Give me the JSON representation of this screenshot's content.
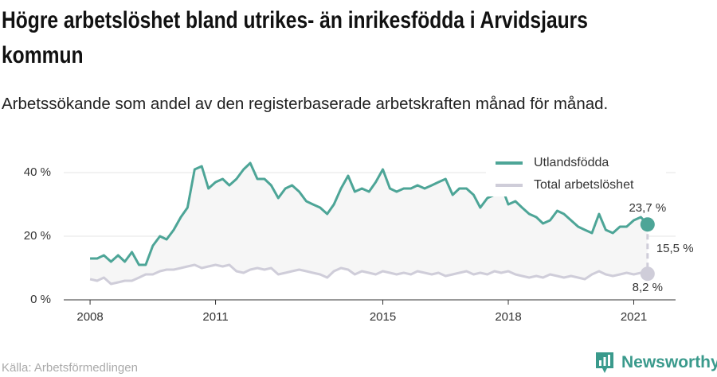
{
  "chart_data": {
    "type": "line",
    "title": "Högre arbetslöshet bland utrikes- än inrikesfödda i Arvidsjaurs kommun",
    "subtitle": "Arbetssökande som andel av den registerbaserade arbetskraften månad för månad.",
    "source": "Källa: Arbetsförmedlingen",
    "brand": "Newsworthy",
    "x": [
      2008,
      2008.17,
      2008.33,
      2008.5,
      2008.67,
      2008.83,
      2009,
      2009.17,
      2009.33,
      2009.5,
      2009.67,
      2009.83,
      2010,
      2010.17,
      2010.33,
      2010.5,
      2010.67,
      2010.83,
      2011,
      2011.17,
      2011.33,
      2011.5,
      2011.67,
      2011.83,
      2012,
      2012.17,
      2012.33,
      2012.5,
      2012.67,
      2012.83,
      2013,
      2013.17,
      2013.33,
      2013.5,
      2013.67,
      2013.83,
      2014,
      2014.17,
      2014.33,
      2014.5,
      2014.67,
      2014.83,
      2015,
      2015.17,
      2015.33,
      2015.5,
      2015.67,
      2015.83,
      2016,
      2016.17,
      2016.33,
      2016.5,
      2016.67,
      2016.83,
      2017,
      2017.17,
      2017.33,
      2017.5,
      2017.67,
      2017.83,
      2018,
      2018.17,
      2018.33,
      2018.5,
      2018.67,
      2018.83,
      2019,
      2019.17,
      2019.33,
      2019.5,
      2019.67,
      2019.83,
      2020,
      2020.17,
      2020.33,
      2020.5,
      2020.67,
      2020.83,
      2021,
      2021.17,
      2021.33
    ],
    "series": [
      {
        "name": "Utlandsfödda",
        "color": "#4da597",
        "values": [
          13,
          13,
          14,
          12,
          14,
          12,
          15,
          11,
          11,
          17,
          20,
          19,
          22,
          26,
          29,
          41,
          42,
          35,
          37,
          38,
          36,
          38,
          41,
          43,
          38,
          38,
          36,
          32,
          35,
          36,
          34,
          31,
          30,
          29,
          27,
          30,
          35,
          39,
          34,
          35,
          34,
          37,
          41,
          35,
          34,
          35,
          35,
          36,
          35,
          36,
          37,
          38,
          33,
          35,
          35,
          33,
          29,
          32,
          33,
          36,
          30,
          31,
          29,
          27,
          26,
          24,
          25,
          28,
          27,
          25,
          23,
          22,
          21,
          27,
          22,
          21,
          23,
          23,
          25,
          26,
          23.7
        ],
        "value_labels": [
          null,
          null,
          null,
          null,
          null,
          null,
          null,
          null,
          null,
          null,
          null,
          null,
          null,
          null,
          null,
          null,
          null,
          null,
          null,
          null,
          null,
          null,
          null,
          null,
          null,
          null,
          null,
          null,
          null,
          null,
          null,
          null,
          null,
          null,
          null,
          null,
          null,
          null,
          null,
          null,
          null,
          null,
          null,
          null,
          null,
          null,
          null,
          null,
          null,
          null,
          null,
          null,
          null,
          null,
          null,
          null,
          null,
          null,
          null,
          null,
          null,
          null,
          null,
          null,
          null,
          null,
          null,
          null,
          null,
          null,
          null,
          null,
          null,
          null,
          null,
          null,
          null,
          null,
          null,
          null,
          "23,7 %"
        ]
      },
      {
        "name": "Total arbetslöshet",
        "color": "#cfcdd9",
        "values": [
          6.5,
          6,
          7,
          5,
          5.5,
          6,
          6,
          7,
          8,
          8,
          9,
          9.5,
          9.5,
          10,
          10.5,
          11,
          10,
          10.5,
          11,
          10.5,
          11,
          9,
          8.5,
          9.5,
          10,
          9.5,
          10,
          8,
          8.5,
          9,
          9.5,
          9,
          8.5,
          8,
          7,
          9,
          10,
          9.5,
          8,
          9,
          8.5,
          8,
          9,
          8.5,
          8,
          8.5,
          8,
          9,
          8.5,
          8,
          8.5,
          7.5,
          8,
          8.5,
          9,
          8,
          8.5,
          8,
          9,
          8.5,
          9,
          8,
          7.5,
          7,
          7.5,
          7,
          8,
          7.5,
          7,
          7.5,
          7,
          6.5,
          8,
          9,
          8,
          7.5,
          8,
          8.5,
          8,
          8.5,
          8.2
        ],
        "value_labels": [
          null,
          null,
          null,
          null,
          null,
          null,
          null,
          null,
          null,
          null,
          null,
          null,
          null,
          null,
          null,
          null,
          null,
          null,
          null,
          null,
          null,
          null,
          null,
          null,
          null,
          null,
          null,
          null,
          null,
          null,
          null,
          null,
          null,
          null,
          null,
          null,
          null,
          null,
          null,
          null,
          null,
          null,
          null,
          null,
          null,
          null,
          null,
          null,
          null,
          null,
          null,
          null,
          null,
          null,
          null,
          null,
          null,
          null,
          null,
          null,
          null,
          null,
          null,
          null,
          null,
          null,
          null,
          null,
          null,
          null,
          null,
          null,
          null,
          null,
          null,
          null,
          null,
          null,
          null,
          null,
          "8,2 %"
        ]
      }
    ],
    "gap": {
      "value": 15.5,
      "label": "15,5 %"
    },
    "xlim": [
      2007.37,
      2022.0
    ],
    "xticks": [
      2008,
      2011,
      2015,
      2018,
      2021
    ],
    "ylim": [
      0,
      44
    ],
    "yticks": [
      {
        "value": 0,
        "label": "0 %"
      },
      {
        "value": 20,
        "label": "20 %"
      },
      {
        "value": 40,
        "label": "40 %"
      }
    ],
    "grid": true,
    "legend": "top-right"
  }
}
